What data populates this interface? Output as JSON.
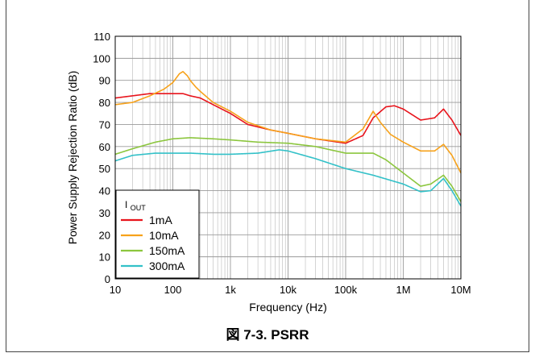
{
  "caption": "図 7-3. PSRR",
  "chart_data": {
    "type": "line",
    "xscale": "log",
    "xlim": [
      10,
      10000000
    ],
    "ylim": [
      0,
      110
    ],
    "xlabel": "Frequency (Hz)",
    "ylabel": "Power Supply Rejection Ratio (dB)",
    "x_ticks": [
      {
        "value": 10,
        "label": "10"
      },
      {
        "value": 100,
        "label": "100"
      },
      {
        "value": 1000,
        "label": "1k"
      },
      {
        "value": 10000,
        "label": "10k"
      },
      {
        "value": 100000,
        "label": "100k"
      },
      {
        "value": 1000000,
        "label": "1M"
      },
      {
        "value": 10000000,
        "label": "10M"
      }
    ],
    "y_ticks": [
      0,
      10,
      20,
      30,
      40,
      50,
      60,
      70,
      80,
      90,
      100,
      110
    ],
    "grid": true,
    "legend": {
      "placement": "bottom-left",
      "title_main": "I",
      "title_sub": "OUT"
    },
    "series": [
      {
        "name": "1mA",
        "color": "#e8141c",
        "x": [
          10,
          20,
          40,
          70,
          100,
          150,
          200,
          300,
          500,
          1000,
          2000,
          5000,
          10000,
          30000,
          100000,
          200000,
          300000,
          500000,
          700000,
          1000000,
          2000000,
          3500000,
          5000000,
          7000000,
          10000000
        ],
        "y": [
          82,
          83,
          84,
          84,
          84,
          84,
          83,
          82,
          79,
          75,
          70,
          67.5,
          66,
          63.5,
          61.5,
          65,
          73,
          78,
          78.5,
          77,
          72,
          73,
          77,
          72,
          65
        ]
      },
      {
        "name": "10mA",
        "color": "#f7a21b",
        "x": [
          10,
          20,
          40,
          70,
          100,
          130,
          150,
          180,
          200,
          250,
          300,
          500,
          1000,
          2000,
          5000,
          10000,
          30000,
          100000,
          200000,
          300000,
          400000,
          600000,
          1000000,
          2000000,
          3500000,
          5000000,
          7000000,
          10000000
        ],
        "y": [
          79,
          80,
          83,
          86,
          89,
          93,
          94,
          92,
          90,
          87,
          85,
          80,
          76,
          71,
          67.5,
          66,
          63.5,
          62,
          68,
          76,
          71,
          65.5,
          62,
          58,
          58,
          61,
          56,
          48
        ]
      },
      {
        "name": "150mA",
        "color": "#8cc63e",
        "x": [
          10,
          20,
          50,
          100,
          200,
          500,
          1000,
          3000,
          10000,
          30000,
          100000,
          300000,
          500000,
          1000000,
          2000000,
          3000000,
          5000000,
          7000000,
          10000000
        ],
        "y": [
          56.5,
          59,
          62,
          63.5,
          64,
          63.5,
          63,
          62,
          61.5,
          60,
          57,
          57,
          54,
          48,
          42,
          43,
          47,
          42,
          35
        ]
      },
      {
        "name": "300mA",
        "color": "#33c1c8",
        "x": [
          10,
          20,
          50,
          100,
          200,
          500,
          1000,
          3000,
          7000,
          10000,
          30000,
          100000,
          300000,
          1000000,
          2000000,
          3000000,
          5000000,
          7000000,
          10000000
        ],
        "y": [
          53.5,
          56,
          57,
          57,
          57,
          56.5,
          56.5,
          57,
          58.5,
          58,
          54.5,
          50,
          47,
          43,
          39.5,
          40,
          45.5,
          40,
          33
        ]
      }
    ]
  }
}
